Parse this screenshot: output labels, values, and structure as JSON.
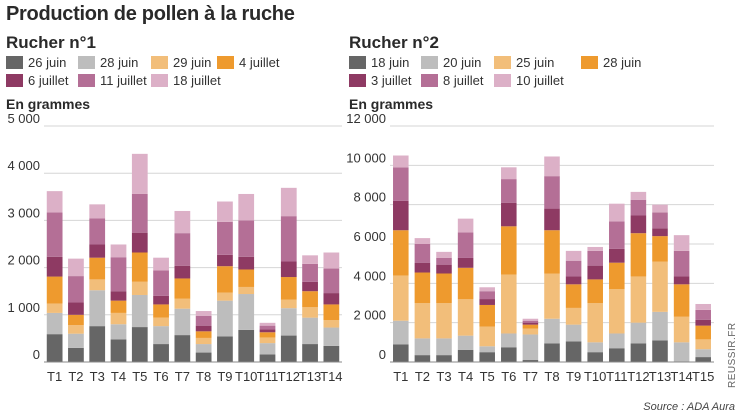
{
  "title": "Production de pollen à la ruche",
  "source": "Source : ADA Aura",
  "watermark": "REUSSIR.FR",
  "chart_data": [
    {
      "type": "bar",
      "stacked": true,
      "title": "Rucher n°1",
      "ylabel": "En grammes",
      "xlabel": "",
      "ylim": [
        0,
        5000
      ],
      "yticks": [
        0,
        1000,
        2000,
        3000,
        4000,
        5000
      ],
      "ytick_labels": [
        "0",
        "1 000",
        "2 000",
        "3 000",
        "4 000",
        "5 000"
      ],
      "grid": true,
      "categories": [
        "T1",
        "T2",
        "T3",
        "T4",
        "T5",
        "T6",
        "T7",
        "T8",
        "T9",
        "T10",
        "T11",
        "T12",
        "T13",
        "T14"
      ],
      "series": [
        {
          "name": "26 juin",
          "color": "#666666",
          "values": [
            590,
            300,
            760,
            480,
            740,
            380,
            570,
            200,
            540,
            680,
            160,
            560,
            380,
            340
          ]
        },
        {
          "name": "28 juin",
          "color": "#bdbdbd",
          "values": [
            450,
            300,
            760,
            320,
            680,
            380,
            560,
            180,
            760,
            760,
            240,
            580,
            560,
            390
          ]
        },
        {
          "name": "29 juin",
          "color": "#f2be7a",
          "values": [
            200,
            180,
            230,
            240,
            280,
            180,
            210,
            130,
            170,
            150,
            120,
            180,
            220,
            160
          ]
        },
        {
          "name": "4 juillet",
          "color": "#ee9a2e",
          "values": [
            570,
            220,
            460,
            260,
            620,
            280,
            430,
            140,
            560,
            370,
            110,
            480,
            340,
            330
          ]
        },
        {
          "name": "6 juillet",
          "color": "#8e3a63",
          "values": [
            420,
            260,
            280,
            200,
            420,
            180,
            270,
            120,
            240,
            270,
            60,
            330,
            200,
            240
          ]
        },
        {
          "name": "11 juillet",
          "color": "#b46f96",
          "values": [
            940,
            560,
            550,
            720,
            820,
            540,
            690,
            210,
            700,
            770,
            80,
            960,
            380,
            520
          ]
        },
        {
          "name": "18 juillet",
          "color": "#dcb0c7",
          "values": [
            450,
            370,
            300,
            270,
            850,
            270,
            470,
            100,
            430,
            560,
            60,
            600,
            180,
            340
          ]
        }
      ]
    },
    {
      "type": "bar",
      "stacked": true,
      "title": "Rucher n°2",
      "ylabel": "En grammes",
      "xlabel": "",
      "ylim": [
        0,
        12000
      ],
      "yticks": [
        0,
        2000,
        4000,
        6000,
        8000,
        10000,
        12000
      ],
      "ytick_labels": [
        "0",
        "2 000",
        "4 000",
        "6 000",
        "8 000",
        "10 000",
        "12 000"
      ],
      "grid": true,
      "categories": [
        "T1",
        "T2",
        "T3",
        "T4",
        "T5",
        "T6",
        "T7",
        "T8",
        "T9",
        "T10",
        "T11",
        "T12",
        "T13",
        "T14",
        "T15"
      ],
      "series": [
        {
          "name": "18 juin",
          "color": "#666666",
          "values": [
            900,
            350,
            350,
            620,
            500,
            750,
            100,
            950,
            1050,
            500,
            700,
            950,
            1100,
            0,
            250
          ]
        },
        {
          "name": "20 juin",
          "color": "#bdbdbd",
          "values": [
            1200,
            850,
            850,
            720,
            300,
            700,
            1300,
            1250,
            850,
            500,
            750,
            1050,
            1450,
            1000,
            400
          ]
        },
        {
          "name": "25 juin",
          "color": "#f2be7a",
          "values": [
            2300,
            1800,
            1800,
            1850,
            1000,
            3000,
            300,
            2300,
            850,
            2000,
            2250,
            2350,
            2550,
            1300,
            500
          ]
        },
        {
          "name": "28 juin",
          "color": "#ee9a2e",
          "values": [
            2300,
            1550,
            1500,
            1600,
            1100,
            2450,
            200,
            2200,
            1200,
            1200,
            1350,
            2200,
            1300,
            1650,
            700
          ]
        },
        {
          "name": "3 juillet",
          "color": "#8e3a63",
          "values": [
            1500,
            500,
            450,
            500,
            300,
            1200,
            100,
            1100,
            400,
            700,
            700,
            900,
            400,
            400,
            300
          ]
        },
        {
          "name": "8 juillet",
          "color": "#b46f96",
          "values": [
            1700,
            950,
            350,
            1300,
            400,
            1200,
            100,
            1650,
            800,
            750,
            1400,
            800,
            800,
            1300,
            500
          ]
        },
        {
          "name": "10 juillet",
          "color": "#dcb0c7",
          "values": [
            600,
            300,
            300,
            700,
            200,
            600,
            100,
            1000,
            500,
            200,
            900,
            400,
            400,
            800,
            300
          ]
        }
      ]
    }
  ]
}
